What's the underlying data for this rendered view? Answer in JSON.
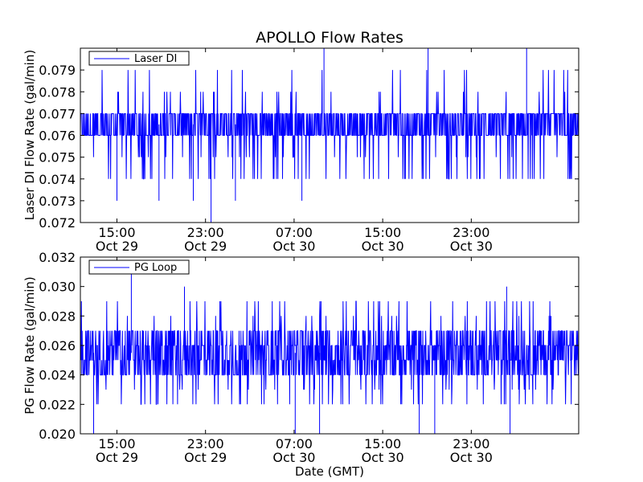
{
  "chart_data": [
    {
      "type": "line",
      "title": "APOLLO Flow Rates",
      "ylabel": "Laser DI Flow Rate (gal/min)",
      "xlabel": "",
      "ylim": [
        0.072,
        0.08
      ],
      "yticks": [
        "0.072",
        "0.073",
        "0.074",
        "0.075",
        "0.076",
        "0.077",
        "0.078",
        "0.079"
      ],
      "xticks": [
        {
          "time": "15:00",
          "date": "Oct 29"
        },
        {
          "time": "23:00",
          "date": "Oct 29"
        },
        {
          "time": "07:00",
          "date": "Oct 30"
        },
        {
          "time": "15:00",
          "date": "Oct 30"
        },
        {
          "time": "23:00",
          "date": "Oct 30"
        }
      ],
      "legend": {
        "location": "upper left",
        "entries": [
          "Laser DI"
        ]
      },
      "series": [
        {
          "name": "Laser DI",
          "color": "#0000ff",
          "baseline_band": [
            0.076,
            0.077
          ],
          "spike_range": [
            0.072,
            0.08
          ],
          "spikes": [
            {
              "x_hours": 3.3,
              "y": 0.073
            },
            {
              "x_hours": 7.1,
              "y": 0.073
            },
            {
              "x_hours": 10.2,
              "y": 0.073
            },
            {
              "x_hours": 11.8,
              "y": 0.072
            },
            {
              "x_hours": 14.0,
              "y": 0.073
            },
            {
              "x_hours": 20.0,
              "y": 0.073
            },
            {
              "x_hours": 22.0,
              "y": 0.08
            },
            {
              "x_hours": 31.4,
              "y": 0.08
            },
            {
              "x_hours": 40.3,
              "y": 0.08
            }
          ]
        }
      ]
    },
    {
      "type": "line",
      "title": "",
      "ylabel": "PG Flow Rate (gal/min)",
      "xlabel": "Date (GMT)",
      "ylim": [
        0.02,
        0.032
      ],
      "yticks": [
        "0.020",
        "0.022",
        "0.024",
        "0.026",
        "0.028",
        "0.030",
        "0.032"
      ],
      "xticks": [
        {
          "time": "15:00",
          "date": "Oct 29"
        },
        {
          "time": "23:00",
          "date": "Oct 29"
        },
        {
          "time": "07:00",
          "date": "Oct 30"
        },
        {
          "time": "15:00",
          "date": "Oct 30"
        },
        {
          "time": "23:00",
          "date": "Oct 30"
        }
      ],
      "legend": {
        "location": "upper left",
        "entries": [
          "PG Loop"
        ]
      },
      "series": [
        {
          "name": "PG Loop",
          "color": "#0000ff",
          "baseline_band": [
            0.024,
            0.027
          ],
          "spike_range": [
            0.02,
            0.031
          ],
          "spikes": [
            {
              "x_hours": 1.2,
              "y": 0.02
            },
            {
              "x_hours": 4.6,
              "y": 0.031
            },
            {
              "x_hours": 9.4,
              "y": 0.03
            },
            {
              "x_hours": 19.4,
              "y": 0.02
            },
            {
              "x_hours": 21.6,
              "y": 0.02
            },
            {
              "x_hours": 30.6,
              "y": 0.02
            },
            {
              "x_hours": 32.0,
              "y": 0.02
            },
            {
              "x_hours": 38.8,
              "y": 0.02
            },
            {
              "x_hours": 38.5,
              "y": 0.03
            }
          ]
        }
      ]
    }
  ]
}
